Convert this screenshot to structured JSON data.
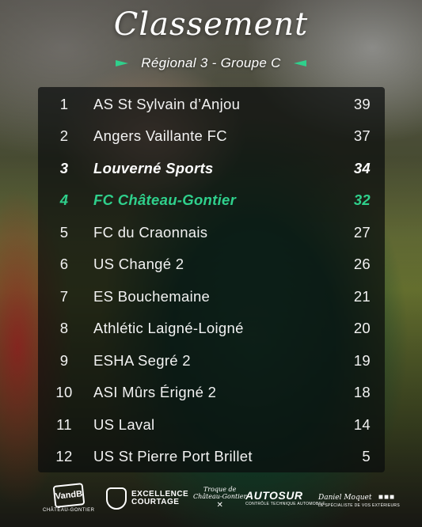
{
  "header": {
    "title": "Classement",
    "subtitle": "Régional 3 - Groupe C"
  },
  "colors": {
    "accent": "#2fd08c",
    "panel": "#0a0c0c"
  },
  "standings": [
    {
      "rank": "1",
      "team": "AS St Sylvain d’Anjou",
      "points": "39"
    },
    {
      "rank": "2",
      "team": "Angers Vaillante FC",
      "points": "37"
    },
    {
      "rank": "3",
      "team": "Louverné Sports",
      "points": "34",
      "style": "bold"
    },
    {
      "rank": "4",
      "team": "FC Château-Gontier",
      "points": "32",
      "style": "highlight"
    },
    {
      "rank": "5",
      "team": "FC du Craonnais",
      "points": "27"
    },
    {
      "rank": "6",
      "team": "US Changé 2",
      "points": "26"
    },
    {
      "rank": "7",
      "team": "ES Bouchemaine",
      "points": "21"
    },
    {
      "rank": "8",
      "team": "Athlétic Laigné-Loigné",
      "points": "20"
    },
    {
      "rank": "9",
      "team": "ESHA Segré 2",
      "points": "19"
    },
    {
      "rank": "10",
      "team": "ASI Mûrs Érigné 2",
      "points": "18"
    },
    {
      "rank": "11",
      "team": "US Laval",
      "points": "14"
    },
    {
      "rank": "12",
      "team": "US St Pierre Port Brillet",
      "points": "5"
    }
  ],
  "sponsors": {
    "vandb": {
      "name": "VandB",
      "caption": "CHÂTEAU-GONTIER"
    },
    "excellence": {
      "line1": "EXCELLENCE",
      "line2": "COURTAGE"
    },
    "troque": {
      "line1": "Troque de",
      "line2": "Château-Gontier"
    },
    "autosur": {
      "name": "AUTOSUR",
      "caption": "CONTRÔLE TECHNIQUE AUTOMOBILE"
    },
    "daniel": {
      "name": "Daniel Moquet",
      "caption": "LE SPÉCIALISTE DE VOS EXTÉRIEURS"
    }
  }
}
